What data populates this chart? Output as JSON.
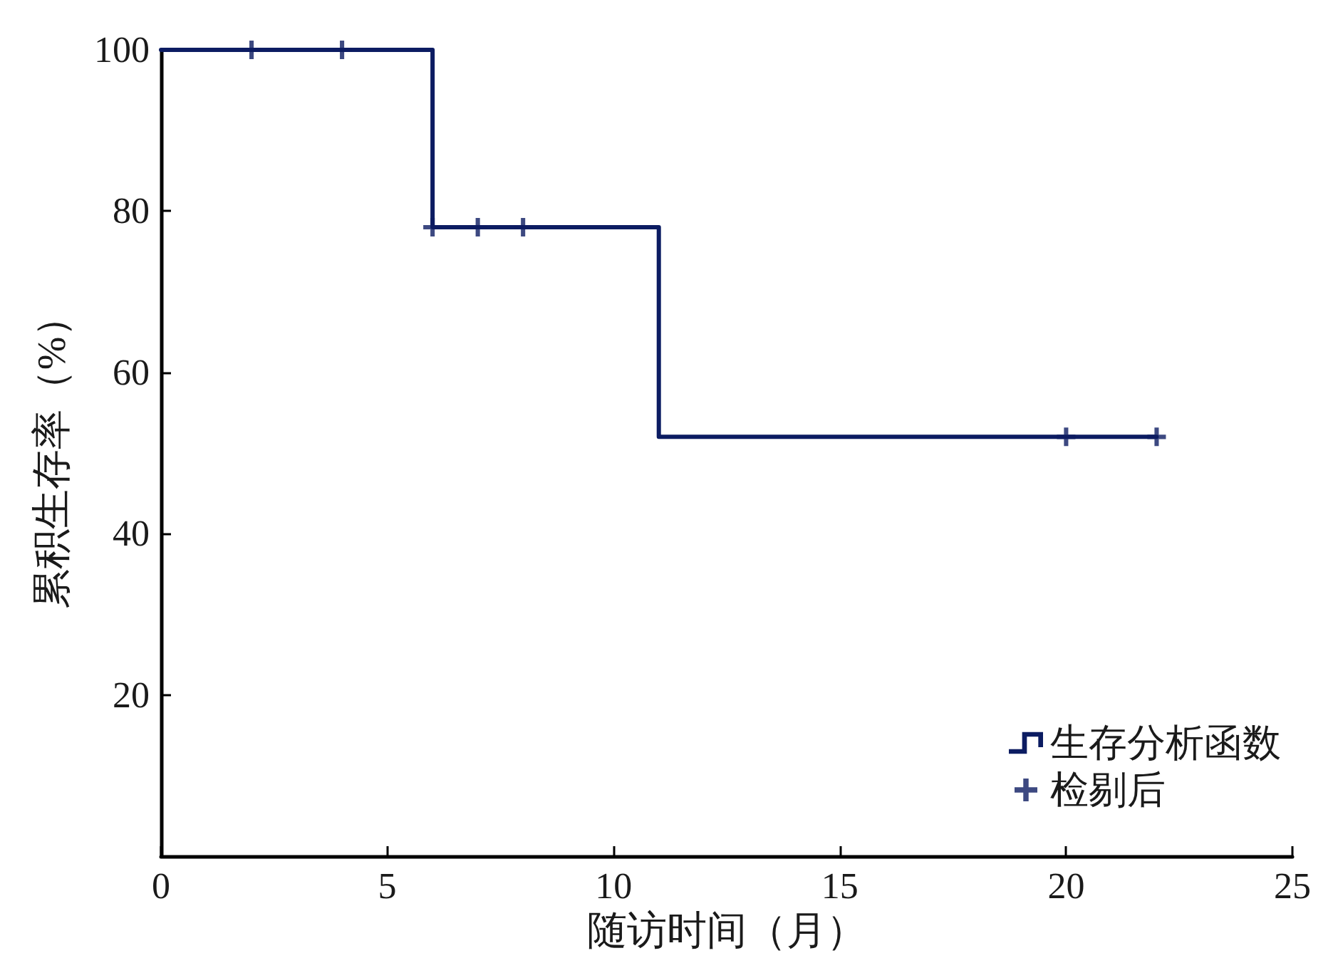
{
  "chart_data": {
    "type": "step",
    "xlabel": "随访时间（月）",
    "ylabel": "累积生存率（%）",
    "series": [
      {
        "name": "生存分析函数",
        "color": "#0c1c62",
        "marker": "none",
        "x": [
          0,
          6,
          11,
          22
        ],
        "values": [
          100,
          78,
          52,
          52
        ]
      },
      {
        "name": "检剔后",
        "type": "scatter",
        "color": "#0c1c62",
        "marker": "cross",
        "x": [
          2,
          4,
          6,
          7,
          8,
          20,
          22
        ],
        "values": [
          100,
          100,
          78,
          78,
          78,
          52,
          52
        ]
      }
    ],
    "xlim": [
      0,
      25
    ],
    "xticks": [
      0,
      5,
      10,
      15,
      20,
      25
    ],
    "ylim": [
      0,
      100
    ],
    "yticks": [
      20,
      40,
      60,
      80,
      100
    ],
    "legend": "bottom right"
  }
}
